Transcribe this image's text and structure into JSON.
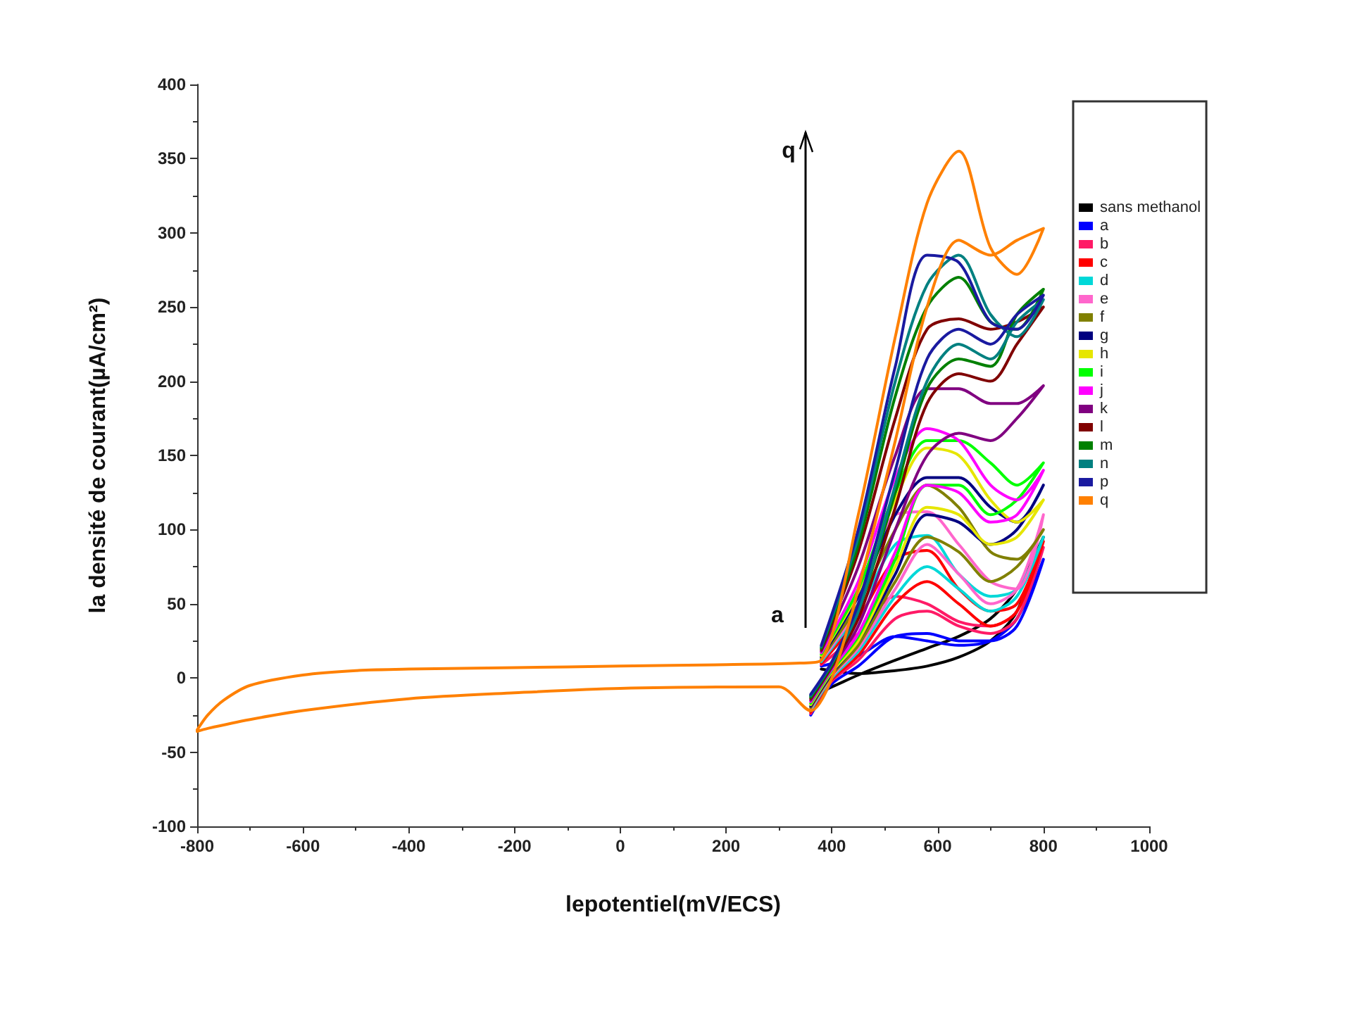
{
  "chart_data": {
    "type": "line",
    "xlabel": "lepotentiel(mV/ECS)",
    "ylabel": "la densité de courant(µA/cm²)",
    "xlim": [
      -800,
      1000
    ],
    "xticks": [
      -800,
      -600,
      -400,
      -200,
      0,
      200,
      400,
      600,
      800,
      1000
    ],
    "ylim": [
      -100,
      400
    ],
    "yticks": [
      -100,
      -50,
      0,
      50,
      100,
      150,
      200,
      250,
      300,
      350,
      400
    ],
    "legend": "right",
    "marker": "none",
    "line_style": "solid",
    "annotations": [
      "a",
      "q"
    ],
    "x": [
      -800,
      -780,
      -750,
      -700,
      -600,
      -500,
      -400,
      -200,
      0,
      200,
      340,
      380,
      450,
      520,
      580,
      640,
      700,
      750,
      800,
      750,
      700,
      640,
      580,
      520,
      450,
      400,
      360,
      300,
      0,
      -200,
      -400,
      -600,
      -700,
      -780,
      -800
    ],
    "series": [
      {
        "name": "sans methanol",
        "color": "#000000",
        "values": [
          null,
          null,
          null,
          null,
          null,
          null,
          null,
          null,
          null,
          null,
          null,
          6,
          3,
          5,
          8,
          14,
          25,
          45,
          95,
          60,
          40,
          28,
          20,
          12,
          2,
          -6,
          -12,
          null,
          null,
          null,
          null,
          null,
          null,
          null,
          null
        ]
      },
      {
        "name": "a",
        "color": "#0000ff",
        "values": [
          null,
          null,
          null,
          null,
          null,
          null,
          null,
          null,
          null,
          null,
          null,
          8,
          15,
          28,
          25,
          22,
          25,
          40,
          80,
          35,
          25,
          25,
          30,
          28,
          8,
          -4,
          -25,
          null,
          null,
          null,
          null,
          null,
          null,
          null,
          null
        ]
      },
      {
        "name": "b",
        "color": "#ff1a66",
        "values": [
          null,
          null,
          null,
          null,
          null,
          null,
          null,
          null,
          null,
          null,
          null,
          9,
          30,
          55,
          50,
          38,
          35,
          45,
          88,
          40,
          30,
          35,
          45,
          40,
          12,
          -2,
          -24,
          null,
          null,
          null,
          null,
          null,
          null,
          null,
          null
        ]
      },
      {
        "name": "c",
        "color": "#ff0000",
        "values": [
          null,
          null,
          null,
          null,
          null,
          null,
          null,
          null,
          null,
          null,
          null,
          10,
          40,
          80,
          86,
          60,
          45,
          50,
          92,
          45,
          35,
          50,
          65,
          50,
          15,
          -1,
          -23,
          null,
          null,
          null,
          null,
          null,
          null,
          null,
          null
        ]
      },
      {
        "name": "d",
        "color": "#00d8d8",
        "values": [
          null,
          null,
          null,
          null,
          null,
          null,
          null,
          null,
          null,
          null,
          null,
          11,
          45,
          90,
          96,
          70,
          55,
          60,
          95,
          55,
          45,
          60,
          75,
          55,
          18,
          0,
          -22,
          null,
          null,
          null,
          null,
          null,
          null,
          null,
          null
        ]
      },
      {
        "name": "e",
        "color": "#ff66cc",
        "values": [
          null,
          null,
          null,
          null,
          null,
          null,
          null,
          null,
          null,
          null,
          null,
          12,
          48,
          110,
          112,
          90,
          65,
          60,
          110,
          60,
          50,
          70,
          90,
          60,
          20,
          1,
          -21,
          null,
          null,
          null,
          null,
          null,
          null,
          null,
          null
        ]
      },
      {
        "name": "f",
        "color": "#808000",
        "values": [
          null,
          null,
          null,
          null,
          null,
          null,
          null,
          null,
          null,
          null,
          null,
          13,
          50,
          100,
          130,
          115,
          85,
          80,
          100,
          75,
          65,
          85,
          95,
          65,
          22,
          2,
          -20,
          null,
          null,
          null,
          null,
          null,
          null,
          null,
          null
        ]
      },
      {
        "name": "g",
        "color": "#000080",
        "values": [
          null,
          null,
          null,
          null,
          null,
          null,
          null,
          null,
          null,
          null,
          null,
          14,
          55,
          110,
          135,
          135,
          115,
          105,
          130,
          100,
          90,
          105,
          110,
          70,
          25,
          3,
          -19,
          null,
          null,
          null,
          null,
          null,
          null,
          null,
          null
        ]
      },
      {
        "name": "h",
        "color": "#e6e600",
        "values": [
          null,
          null,
          null,
          null,
          null,
          null,
          null,
          null,
          null,
          null,
          null,
          15,
          58,
          120,
          155,
          150,
          120,
          105,
          120,
          95,
          90,
          110,
          115,
          75,
          25,
          4,
          -18,
          null,
          null,
          null,
          null,
          null,
          null,
          null,
          null
        ]
      },
      {
        "name": "i",
        "color": "#00ff00",
        "values": [
          null,
          null,
          null,
          null,
          null,
          null,
          null,
          null,
          null,
          null,
          null,
          16,
          60,
          125,
          160,
          160,
          145,
          130,
          145,
          120,
          110,
          130,
          130,
          80,
          28,
          5,
          -17,
          null,
          null,
          null,
          null,
          null,
          null,
          null,
          null
        ]
      },
      {
        "name": "j",
        "color": "#ff00ff",
        "values": [
          null,
          null,
          null,
          null,
          null,
          null,
          null,
          null,
          null,
          null,
          null,
          17,
          65,
          135,
          168,
          160,
          130,
          120,
          140,
          110,
          105,
          125,
          130,
          85,
          30,
          6,
          -16,
          null,
          null,
          null,
          null,
          null,
          null,
          null,
          null
        ]
      },
      {
        "name": "k",
        "color": "#800080",
        "values": [
          null,
          null,
          null,
          null,
          null,
          null,
          null,
          null,
          null,
          null,
          null,
          18,
          75,
          150,
          195,
          195,
          185,
          185,
          197,
          175,
          160,
          165,
          150,
          100,
          35,
          7,
          -15,
          null,
          null,
          null,
          null,
          null,
          null,
          null,
          null
        ]
      },
      {
        "name": "l",
        "color": "#800000",
        "values": [
          null,
          null,
          null,
          null,
          null,
          null,
          null,
          null,
          null,
          null,
          null,
          19,
          85,
          175,
          235,
          242,
          235,
          240,
          250,
          225,
          200,
          205,
          185,
          115,
          40,
          8,
          -14,
          null,
          null,
          null,
          null,
          null,
          null,
          null,
          null
        ]
      },
      {
        "name": "m",
        "color": "#008000",
        "values": [
          null,
          null,
          null,
          null,
          null,
          null,
          null,
          null,
          null,
          null,
          null,
          20,
          90,
          190,
          250,
          270,
          240,
          235,
          262,
          245,
          210,
          215,
          195,
          125,
          45,
          9,
          -13,
          null,
          null,
          null,
          null,
          null,
          null,
          null,
          null
        ]
      },
      {
        "name": "n",
        "color": "#008080",
        "values": [
          null,
          null,
          null,
          null,
          null,
          null,
          null,
          null,
          null,
          null,
          null,
          21,
          95,
          200,
          265,
          285,
          245,
          230,
          255,
          240,
          215,
          225,
          200,
          130,
          45,
          10,
          -12,
          null,
          null,
          null,
          null,
          null,
          null,
          null,
          null
        ]
      },
      {
        "name": "p",
        "color": "#1a1aa0",
        "values": [
          null,
          null,
          null,
          null,
          null,
          null,
          null,
          null,
          null,
          null,
          null,
          22,
          100,
          210,
          285,
          280,
          240,
          235,
          258,
          245,
          225,
          235,
          215,
          140,
          50,
          11,
          -11,
          null,
          null,
          null,
          null,
          null,
          null,
          null,
          null
        ]
      },
      {
        "name": "q",
        "color": "#ff8000",
        "values": [
          -35,
          -25,
          -15,
          -5,
          2,
          5,
          6,
          7,
          8,
          9,
          10,
          12,
          110,
          230,
          320,
          355,
          290,
          272,
          303,
          295,
          285,
          295,
          250,
          160,
          60,
          0,
          -22,
          -6,
          -7,
          -10,
          -14,
          -22,
          -28,
          -34,
          -36
        ]
      }
    ]
  }
}
